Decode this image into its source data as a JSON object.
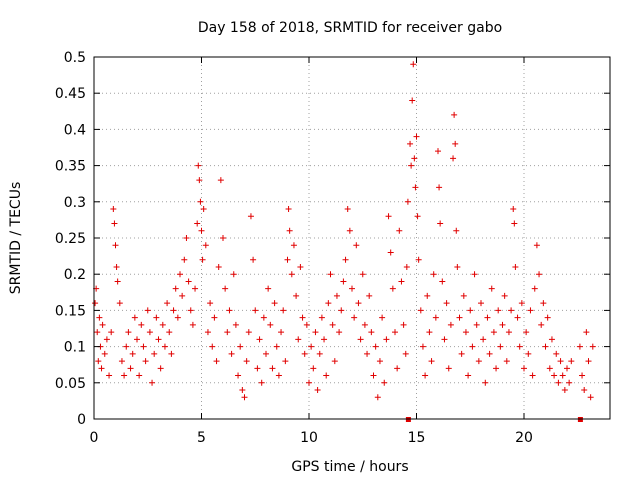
{
  "chart_data": {
    "type": "scatter",
    "title": "Day 158 of 2018, SRMTID for receiver gabo",
    "xlabel": "GPS time / hours",
    "ylabel": "SRMTID / TECUs",
    "xlim": [
      0,
      24
    ],
    "ylim": [
      0,
      0.5
    ],
    "xticks": [
      0,
      5,
      10,
      15,
      20
    ],
    "yticks": [
      0,
      0.05,
      0.1,
      0.15,
      0.2,
      0.25,
      0.3,
      0.35,
      0.4,
      0.45,
      0.5
    ],
    "grid": true,
    "marker": "+",
    "color": "#e00000",
    "series": [
      {
        "name": "SRMTID",
        "points": [
          [
            0.05,
            0.16
          ],
          [
            0.1,
            0.18
          ],
          [
            0.15,
            0.12
          ],
          [
            0.2,
            0.08
          ],
          [
            0.25,
            0.14
          ],
          [
            0.3,
            0.1
          ],
          [
            0.35,
            0.07
          ],
          [
            0.4,
            0.13
          ],
          [
            0.5,
            0.09
          ],
          [
            0.6,
            0.11
          ],
          [
            0.7,
            0.06
          ],
          [
            0.8,
            0.12
          ],
          [
            0.9,
            0.29
          ],
          [
            0.95,
            0.27
          ],
          [
            1.0,
            0.24
          ],
          [
            1.05,
            0.21
          ],
          [
            1.1,
            0.19
          ],
          [
            1.2,
            0.16
          ],
          [
            1.3,
            0.08
          ],
          [
            1.4,
            0.06
          ],
          [
            1.5,
            0.1
          ],
          [
            1.6,
            0.12
          ],
          [
            1.7,
            0.07
          ],
          [
            1.8,
            0.09
          ],
          [
            1.9,
            0.14
          ],
          [
            2.0,
            0.11
          ],
          [
            2.1,
            0.06
          ],
          [
            2.2,
            0.13
          ],
          [
            2.3,
            0.1
          ],
          [
            2.4,
            0.08
          ],
          [
            2.5,
            0.15
          ],
          [
            2.6,
            0.12
          ],
          [
            2.7,
            0.05
          ],
          [
            2.8,
            0.09
          ],
          [
            2.9,
            0.14
          ],
          [
            3.0,
            0.11
          ],
          [
            3.1,
            0.07
          ],
          [
            3.2,
            0.13
          ],
          [
            3.3,
            0.1
          ],
          [
            3.4,
            0.16
          ],
          [
            3.5,
            0.12
          ],
          [
            3.6,
            0.09
          ],
          [
            3.7,
            0.15
          ],
          [
            3.8,
            0.18
          ],
          [
            3.9,
            0.14
          ],
          [
            4.0,
            0.2
          ],
          [
            4.1,
            0.17
          ],
          [
            4.2,
            0.22
          ],
          [
            4.3,
            0.25
          ],
          [
            4.4,
            0.19
          ],
          [
            4.5,
            0.15
          ],
          [
            4.6,
            0.13
          ],
          [
            4.7,
            0.18
          ],
          [
            4.8,
            0.27
          ],
          [
            4.85,
            0.35
          ],
          [
            4.9,
            0.33
          ],
          [
            4.95,
            0.3
          ],
          [
            5.0,
            0.26
          ],
          [
            5.05,
            0.22
          ],
          [
            5.1,
            0.29
          ],
          [
            5.2,
            0.24
          ],
          [
            5.3,
            0.12
          ],
          [
            5.4,
            0.16
          ],
          [
            5.5,
            0.1
          ],
          [
            5.6,
            0.14
          ],
          [
            5.7,
            0.08
          ],
          [
            5.8,
            0.21
          ],
          [
            5.9,
            0.33
          ],
          [
            6.0,
            0.25
          ],
          [
            6.1,
            0.18
          ],
          [
            6.2,
            0.12
          ],
          [
            6.3,
            0.15
          ],
          [
            6.4,
            0.09
          ],
          [
            6.5,
            0.2
          ],
          [
            6.6,
            0.13
          ],
          [
            6.7,
            0.06
          ],
          [
            6.8,
            0.1
          ],
          [
            6.9,
            0.04
          ],
          [
            7.0,
            0.03
          ],
          [
            7.1,
            0.08
          ],
          [
            7.2,
            0.12
          ],
          [
            7.3,
            0.28
          ],
          [
            7.4,
            0.22
          ],
          [
            7.5,
            0.15
          ],
          [
            7.6,
            0.07
          ],
          [
            7.7,
            0.11
          ],
          [
            7.8,
            0.05
          ],
          [
            7.9,
            0.14
          ],
          [
            8.0,
            0.09
          ],
          [
            8.1,
            0.18
          ],
          [
            8.2,
            0.13
          ],
          [
            8.3,
            0.07
          ],
          [
            8.4,
            0.16
          ],
          [
            8.5,
            0.1
          ],
          [
            8.6,
            0.06
          ],
          [
            8.7,
            0.12
          ],
          [
            8.8,
            0.15
          ],
          [
            8.9,
            0.08
          ],
          [
            9.0,
            0.22
          ],
          [
            9.05,
            0.29
          ],
          [
            9.1,
            0.26
          ],
          [
            9.2,
            0.2
          ],
          [
            9.3,
            0.24
          ],
          [
            9.4,
            0.17
          ],
          [
            9.5,
            0.11
          ],
          [
            9.6,
            0.21
          ],
          [
            9.7,
            0.14
          ],
          [
            9.8,
            0.09
          ],
          [
            9.9,
            0.13
          ],
          [
            10.0,
            0.05
          ],
          [
            10.1,
            0.1
          ],
          [
            10.2,
            0.07
          ],
          [
            10.3,
            0.12
          ],
          [
            10.4,
            0.04
          ],
          [
            10.5,
            0.09
          ],
          [
            10.6,
            0.14
          ],
          [
            10.7,
            0.11
          ],
          [
            10.8,
            0.06
          ],
          [
            10.9,
            0.16
          ],
          [
            11.0,
            0.2
          ],
          [
            11.1,
            0.13
          ],
          [
            11.2,
            0.08
          ],
          [
            11.3,
            0.17
          ],
          [
            11.4,
            0.12
          ],
          [
            11.5,
            0.15
          ],
          [
            11.6,
            0.19
          ],
          [
            11.7,
            0.22
          ],
          [
            11.8,
            0.29
          ],
          [
            11.9,
            0.26
          ],
          [
            12.0,
            0.18
          ],
          [
            12.1,
            0.14
          ],
          [
            12.2,
            0.24
          ],
          [
            12.3,
            0.16
          ],
          [
            12.4,
            0.11
          ],
          [
            12.5,
            0.2
          ],
          [
            12.6,
            0.13
          ],
          [
            12.7,
            0.09
          ],
          [
            12.8,
            0.17
          ],
          [
            12.9,
            0.12
          ],
          [
            13.0,
            0.06
          ],
          [
            13.1,
            0.1
          ],
          [
            13.2,
            0.03
          ],
          [
            13.3,
            0.08
          ],
          [
            13.4,
            0.14
          ],
          [
            13.5,
            0.05
          ],
          [
            13.6,
            0.11
          ],
          [
            13.7,
            0.28
          ],
          [
            13.8,
            0.23
          ],
          [
            13.9,
            0.18
          ],
          [
            14.0,
            0.12
          ],
          [
            14.1,
            0.07
          ],
          [
            14.2,
            0.26
          ],
          [
            14.3,
            0.19
          ],
          [
            14.4,
            0.13
          ],
          [
            14.5,
            0.09
          ],
          [
            14.55,
            0.21
          ],
          [
            14.6,
            0.3
          ],
          [
            14.7,
            0.38
          ],
          [
            14.75,
            0.35
          ],
          [
            14.8,
            0.44
          ],
          [
            14.85,
            0.49
          ],
          [
            14.9,
            0.36
          ],
          [
            14.95,
            0.32
          ],
          [
            15.0,
            0.39
          ],
          [
            15.05,
            0.28
          ],
          [
            15.1,
            0.22
          ],
          [
            15.2,
            0.15
          ],
          [
            15.3,
            0.1
          ],
          [
            15.4,
            0.06
          ],
          [
            15.5,
            0.17
          ],
          [
            15.6,
            0.12
          ],
          [
            15.7,
            0.08
          ],
          [
            15.8,
            0.2
          ],
          [
            15.9,
            0.14
          ],
          [
            16.0,
            0.37
          ],
          [
            16.05,
            0.32
          ],
          [
            16.1,
            0.27
          ],
          [
            16.2,
            0.19
          ],
          [
            16.3,
            0.11
          ],
          [
            16.4,
            0.16
          ],
          [
            16.5,
            0.07
          ],
          [
            16.6,
            0.13
          ],
          [
            16.7,
            0.36
          ],
          [
            16.75,
            0.42
          ],
          [
            16.8,
            0.38
          ],
          [
            16.85,
            0.26
          ],
          [
            16.9,
            0.21
          ],
          [
            17.0,
            0.14
          ],
          [
            17.1,
            0.09
          ],
          [
            17.2,
            0.17
          ],
          [
            17.3,
            0.12
          ],
          [
            17.4,
            0.06
          ],
          [
            17.5,
            0.15
          ],
          [
            17.6,
            0.1
          ],
          [
            17.7,
            0.2
          ],
          [
            17.8,
            0.13
          ],
          [
            17.9,
            0.08
          ],
          [
            18.0,
            0.16
          ],
          [
            18.1,
            0.11
          ],
          [
            18.2,
            0.05
          ],
          [
            18.3,
            0.14
          ],
          [
            18.4,
            0.09
          ],
          [
            18.5,
            0.18
          ],
          [
            18.6,
            0.12
          ],
          [
            18.7,
            0.07
          ],
          [
            18.8,
            0.15
          ],
          [
            18.9,
            0.1
          ],
          [
            19.0,
            0.13
          ],
          [
            19.1,
            0.17
          ],
          [
            19.2,
            0.08
          ],
          [
            19.3,
            0.12
          ],
          [
            19.4,
            0.15
          ],
          [
            19.5,
            0.29
          ],
          [
            19.55,
            0.27
          ],
          [
            19.6,
            0.21
          ],
          [
            19.7,
            0.14
          ],
          [
            19.8,
            0.1
          ],
          [
            19.9,
            0.16
          ],
          [
            20.0,
            0.07
          ],
          [
            20.1,
            0.12
          ],
          [
            20.2,
            0.09
          ],
          [
            20.3,
            0.15
          ],
          [
            20.4,
            0.06
          ],
          [
            20.5,
            0.18
          ],
          [
            20.6,
            0.24
          ],
          [
            20.7,
            0.2
          ],
          [
            20.8,
            0.13
          ],
          [
            20.9,
            0.16
          ],
          [
            21.0,
            0.1
          ],
          [
            21.1,
            0.14
          ],
          [
            21.2,
            0.07
          ],
          [
            21.3,
            0.11
          ],
          [
            21.4,
            0.06
          ],
          [
            21.5,
            0.09
          ],
          [
            21.6,
            0.05
          ],
          [
            21.7,
            0.08
          ],
          [
            21.8,
            0.06
          ],
          [
            21.9,
            0.04
          ],
          [
            22.0,
            0.07
          ],
          [
            22.1,
            0.05
          ],
          [
            22.2,
            0.08
          ],
          [
            22.6,
            0.1
          ],
          [
            22.7,
            0.06
          ],
          [
            22.8,
            0.04
          ],
          [
            22.9,
            0.12
          ],
          [
            23.0,
            0.08
          ],
          [
            23.1,
            0.03
          ],
          [
            23.2,
            0.1
          ]
        ]
      }
    ],
    "gap_markers_x": [
      14.6,
      22.6
    ]
  }
}
